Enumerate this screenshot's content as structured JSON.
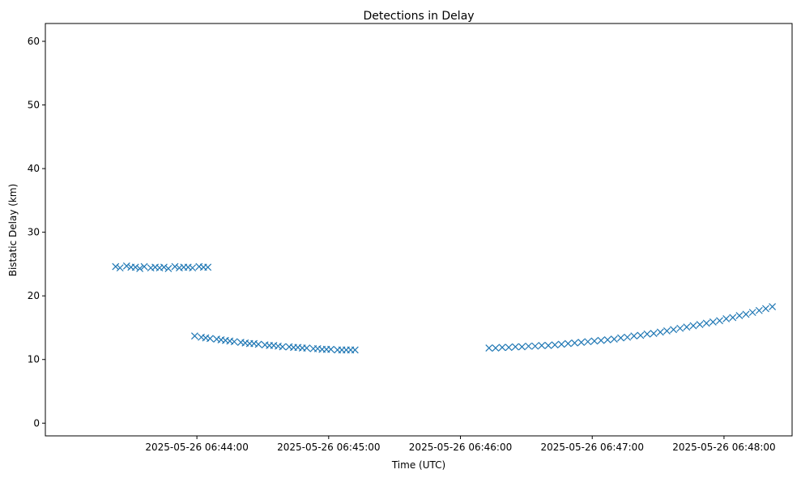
{
  "chart_data": {
    "type": "scatter",
    "title": "Detections in Delay",
    "xlabel": "Time (UTC)",
    "ylabel": "Bistatic Delay (km)",
    "x_unit": "UTC time",
    "xlim": [
      "2025-05-26 06:42:51",
      "2025-05-26 06:48:31"
    ],
    "ylim": [
      -2.0,
      62.8
    ],
    "x_ticks": [
      "2025-05-26 06:44:00",
      "2025-05-26 06:45:00",
      "2025-05-26 06:46:00",
      "2025-05-26 06:47:00",
      "2025-05-26 06:48:00"
    ],
    "y_ticks": [
      0,
      10,
      20,
      30,
      40,
      50,
      60
    ],
    "marker": "x",
    "color": "#1f77b4",
    "grid": false,
    "legend": "none",
    "series": [
      {
        "name": "",
        "points": [
          [
            "2025-05-26 06:43:23",
            24.6
          ],
          [
            "2025-05-26 06:43:25",
            24.4
          ],
          [
            "2025-05-26 06:43:28",
            24.7
          ],
          [
            "2025-05-26 06:43:30",
            24.5
          ],
          [
            "2025-05-26 06:43:32",
            24.5
          ],
          [
            "2025-05-26 06:43:34",
            24.3
          ],
          [
            "2025-05-26 06:43:36",
            24.6
          ],
          [
            "2025-05-26 06:43:39",
            24.4
          ],
          [
            "2025-05-26 06:43:41",
            24.5
          ],
          [
            "2025-05-26 06:43:43",
            24.4
          ],
          [
            "2025-05-26 06:43:45",
            24.5
          ],
          [
            "2025-05-26 06:43:47",
            24.3
          ],
          [
            "2025-05-26 06:43:50",
            24.6
          ],
          [
            "2025-05-26 06:43:52",
            24.4
          ],
          [
            "2025-05-26 06:43:54",
            24.5
          ],
          [
            "2025-05-26 06:43:56",
            24.5
          ],
          [
            "2025-05-26 06:43:58",
            24.4
          ],
          [
            "2025-05-26 06:44:01",
            24.6
          ],
          [
            "2025-05-26 06:44:03",
            24.5
          ],
          [
            "2025-05-26 06:44:05",
            24.5
          ],
          [
            "2025-05-26 06:43:59",
            13.7
          ],
          [
            "2025-05-26 06:44:02",
            13.5
          ],
          [
            "2025-05-26 06:44:04",
            13.4
          ],
          [
            "2025-05-26 06:44:06",
            13.3
          ],
          [
            "2025-05-26 06:44:09",
            13.2
          ],
          [
            "2025-05-26 06:44:11",
            13.1
          ],
          [
            "2025-05-26 06:44:13",
            13.0
          ],
          [
            "2025-05-26 06:44:15",
            12.9
          ],
          [
            "2025-05-26 06:44:17",
            12.8
          ],
          [
            "2025-05-26 06:44:20",
            12.7
          ],
          [
            "2025-05-26 06:44:22",
            12.6
          ],
          [
            "2025-05-26 06:44:24",
            12.5
          ],
          [
            "2025-05-26 06:44:26",
            12.5
          ],
          [
            "2025-05-26 06:44:28",
            12.4
          ],
          [
            "2025-05-26 06:44:31",
            12.3
          ],
          [
            "2025-05-26 06:44:33",
            12.2
          ],
          [
            "2025-05-26 06:44:35",
            12.2
          ],
          [
            "2025-05-26 06:44:37",
            12.1
          ],
          [
            "2025-05-26 06:44:39",
            12.0
          ],
          [
            "2025-05-26 06:44:42",
            12.0
          ],
          [
            "2025-05-26 06:44:44",
            11.9
          ],
          [
            "2025-05-26 06:44:46",
            11.9
          ],
          [
            "2025-05-26 06:44:48",
            11.8
          ],
          [
            "2025-05-26 06:44:50",
            11.8
          ],
          [
            "2025-05-26 06:44:53",
            11.7
          ],
          [
            "2025-05-26 06:44:55",
            11.7
          ],
          [
            "2025-05-26 06:44:57",
            11.6
          ],
          [
            "2025-05-26 06:44:59",
            11.6
          ],
          [
            "2025-05-26 06:45:01",
            11.6
          ],
          [
            "2025-05-26 06:45:04",
            11.5
          ],
          [
            "2025-05-26 06:45:06",
            11.5
          ],
          [
            "2025-05-26 06:45:08",
            11.5
          ],
          [
            "2025-05-26 06:45:10",
            11.5
          ],
          [
            "2025-05-26 06:45:12",
            11.5
          ],
          [
            "2025-05-26 06:46:13",
            11.8
          ],
          [
            "2025-05-26 06:46:16",
            11.8
          ],
          [
            "2025-05-26 06:46:19",
            11.9
          ],
          [
            "2025-05-26 06:46:22",
            11.9
          ],
          [
            "2025-05-26 06:46:25",
            12.0
          ],
          [
            "2025-05-26 06:46:28",
            12.0
          ],
          [
            "2025-05-26 06:46:31",
            12.1
          ],
          [
            "2025-05-26 06:46:34",
            12.1
          ],
          [
            "2025-05-26 06:46:37",
            12.2
          ],
          [
            "2025-05-26 06:46:40",
            12.2
          ],
          [
            "2025-05-26 06:46:43",
            12.3
          ],
          [
            "2025-05-26 06:46:46",
            12.4
          ],
          [
            "2025-05-26 06:46:49",
            12.5
          ],
          [
            "2025-05-26 06:46:52",
            12.6
          ],
          [
            "2025-05-26 06:46:55",
            12.7
          ],
          [
            "2025-05-26 06:46:58",
            12.8
          ],
          [
            "2025-05-26 06:47:01",
            12.9
          ],
          [
            "2025-05-26 06:47:04",
            13.0
          ],
          [
            "2025-05-26 06:47:07",
            13.1
          ],
          [
            "2025-05-26 06:47:10",
            13.2
          ],
          [
            "2025-05-26 06:47:13",
            13.4
          ],
          [
            "2025-05-26 06:47:16",
            13.5
          ],
          [
            "2025-05-26 06:47:19",
            13.7
          ],
          [
            "2025-05-26 06:47:22",
            13.8
          ],
          [
            "2025-05-26 06:47:25",
            14.0
          ],
          [
            "2025-05-26 06:47:28",
            14.1
          ],
          [
            "2025-05-26 06:47:31",
            14.3
          ],
          [
            "2025-05-26 06:47:34",
            14.5
          ],
          [
            "2025-05-26 06:47:37",
            14.7
          ],
          [
            "2025-05-26 06:47:40",
            14.9
          ],
          [
            "2025-05-26 06:47:43",
            15.1
          ],
          [
            "2025-05-26 06:47:46",
            15.3
          ],
          [
            "2025-05-26 06:47:49",
            15.5
          ],
          [
            "2025-05-26 06:47:52",
            15.7
          ],
          [
            "2025-05-26 06:47:55",
            15.9
          ],
          [
            "2025-05-26 06:47:58",
            16.1
          ],
          [
            "2025-05-26 06:48:01",
            16.4
          ],
          [
            "2025-05-26 06:48:04",
            16.6
          ],
          [
            "2025-05-26 06:48:07",
            16.9
          ],
          [
            "2025-05-26 06:48:10",
            17.1
          ],
          [
            "2025-05-26 06:48:13",
            17.4
          ],
          [
            "2025-05-26 06:48:16",
            17.7
          ],
          [
            "2025-05-26 06:48:19",
            18.0
          ],
          [
            "2025-05-26 06:48:22",
            18.3
          ]
        ]
      }
    ]
  }
}
